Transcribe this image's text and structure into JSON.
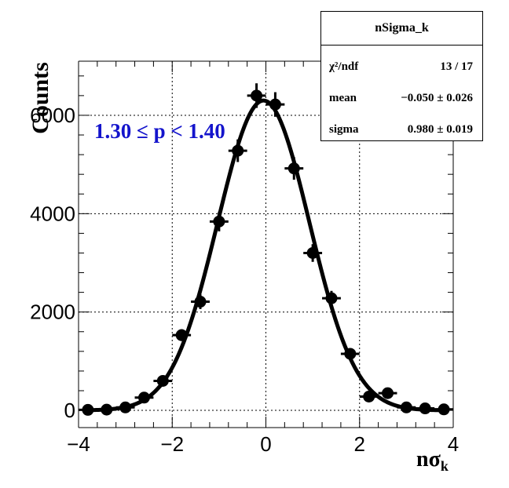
{
  "colors": {
    "fit_curve": "#000000",
    "markers": "#000000",
    "annotation": "#1414cc",
    "grid": "#000000"
  },
  "stats_box": {
    "title": "nSigma_k",
    "rows": [
      {
        "label": "χ²/ndf",
        "value": "13 / 17"
      },
      {
        "label": "mean",
        "value": "−0.050  ± 0.026"
      },
      {
        "label": "sigma",
        "value": "0.980  ± 0.019"
      }
    ]
  },
  "annotation": "1.30  ≤ p < 1.40",
  "chart_data": {
    "type": "scatter",
    "title": "",
    "xlabel_main": "nσ",
    "xlabel_sub": "k",
    "ylabel": "Counts",
    "xlim": [
      -4,
      4
    ],
    "ylim": [
      -350,
      7100
    ],
    "xticks": [
      -4,
      -2,
      0,
      2,
      4
    ],
    "yticks": [
      0,
      2000,
      4000,
      6000
    ],
    "grid": true,
    "series": [
      {
        "x": [
          -3.8,
          -3.4,
          -3.0,
          -2.6,
          -2.2,
          -1.8,
          -1.4,
          -1.0,
          -0.6,
          -0.2,
          0.2,
          0.6,
          1.0,
          1.4,
          1.8,
          2.2,
          2.6,
          3.0,
          3.4,
          3.8
        ],
        "y": [
          10,
          15,
          60,
          260,
          600,
          1530,
          2210,
          3840,
          5280,
          6400,
          6220,
          4920,
          3200,
          2280,
          1150,
          280,
          350,
          60,
          40,
          20
        ],
        "yerr": [
          10,
          12,
          25,
          50,
          75,
          120,
          150,
          200,
          230,
          250,
          250,
          230,
          180,
          150,
          100,
          50,
          60,
          25,
          20,
          15
        ]
      }
    ],
    "fit": {
      "type": "gaussian",
      "mean": -0.05,
      "sigma": 0.98,
      "amplitude": 6300
    }
  }
}
